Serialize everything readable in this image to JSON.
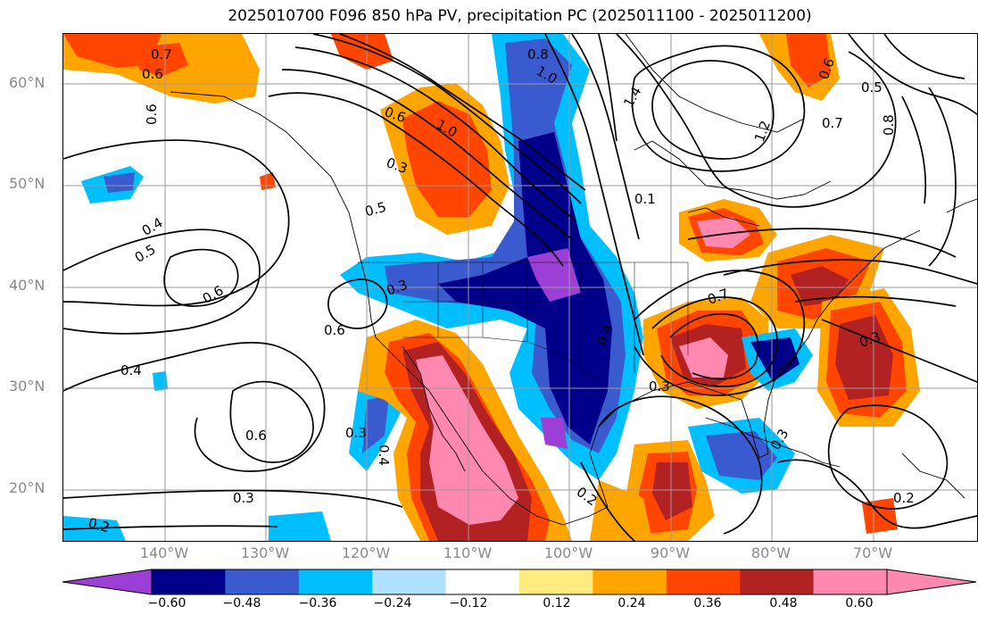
{
  "title": "2025010700 F096 850 hPa PV, precipitation PC (2025011100 - 2025011200)",
  "lat_labels": [
    "60°N",
    "50°N",
    "40°N",
    "30°N",
    "20°N"
  ],
  "lon_labels": [
    "140°W",
    "130°W",
    "120°W",
    "110°W",
    "100°W",
    "90°W",
    "80°W",
    "70°W"
  ],
  "colorbar": {
    "ticks": [
      "−0.60",
      "−0.48",
      "−0.36",
      "−0.24",
      "−0.12",
      "0.12",
      "0.24",
      "0.36",
      "0.48",
      "0.60"
    ],
    "colors": [
      "#9b3fd6",
      "#00008b",
      "#3a5bd0",
      "#00bfff",
      "#b0e0ff",
      "#ffffff",
      "#ffeb80",
      "#ffa500",
      "#ff4500",
      "#b22222",
      "#ff88b0",
      "#ff88b0"
    ]
  },
  "contour_labels": [
    "0.7",
    "0.6",
    "0.6",
    "0.8",
    "1.0",
    "0.6",
    "1.0",
    "0.3",
    "0.5",
    "0.4",
    "0.5",
    "0.6",
    "0.6",
    "0.4",
    "0.6",
    "0.3",
    "0.4",
    "0.3",
    "0.2",
    "0.2",
    "0.3",
    "1.4",
    "1.2",
    "0.6",
    "0.5",
    "0.7",
    "0.8",
    "0.1",
    "0.7",
    "0.4",
    "0.3",
    "0.3",
    "0.3",
    "0.2"
  ]
}
